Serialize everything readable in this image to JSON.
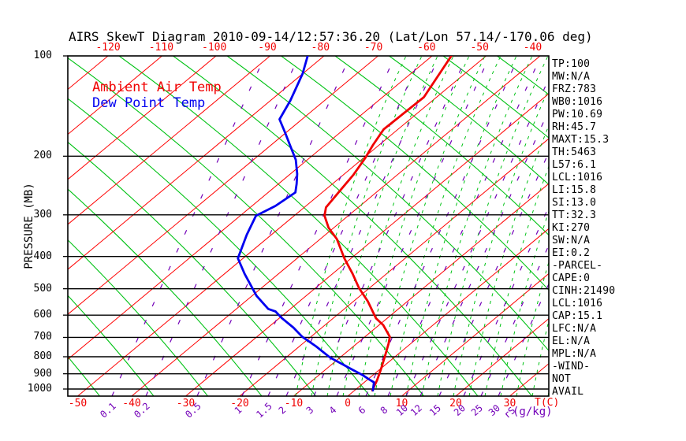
{
  "title": "AIRS SkewT Diagram 2010-09-14/12:57:36.20 (Lat/Lon 57.14/-170.06 deg)",
  "legend": {
    "ambient": "Ambient Air Temp",
    "dew": "Dew Point Temp"
  },
  "colors": {
    "ambient_temp": "#f00000",
    "dew_point": "#0000f0",
    "isotherm": "#ff0000",
    "adiabat_green": "#00c214",
    "mixing_purple": "#7300b8",
    "axis_black": "#000000"
  },
  "axes": {
    "left_label": "PRESSURE (MB)",
    "pressure_ticks": [
      "100",
      "200",
      "300",
      "400",
      "500",
      "600",
      "700",
      "800",
      "900",
      "1000"
    ],
    "top_temp_ticks": [
      "-120",
      "-110",
      "-100",
      "-90",
      "-80",
      "-70",
      "-60",
      "-50",
      "-40"
    ],
    "bottom_temp_ticks": [
      "-50",
      "-40",
      "-30",
      "-20",
      "-10",
      "0",
      "10",
      "20",
      "30"
    ],
    "bottom_unit": "T(C)",
    "mixing_ticks": [
      "0.1",
      "0.2",
      "0.5",
      "1",
      "1.5",
      "2",
      "3",
      "4",
      "6",
      "8",
      "10",
      "12",
      "15",
      "20",
      "25",
      "30"
    ],
    "mixing_unit": "(g/kg)",
    "mixing_unit_prefix": "rS"
  },
  "indices": [
    "TP:100",
    "MW:N/A",
    "FRZ:783",
    "WB0:1016",
    "PW:10.69",
    "RH:45.7",
    "MAXT:15.3",
    "TH:5463",
    "L57:6.1",
    "LCL:1016",
    "LI:15.8",
    "SI:13.0",
    "TT:32.3",
    "KI:270",
    "SW:N/A",
    "EI:0.2",
    "-PARCEL-",
    "CAPE:0",
    "CINH:21490",
    "LCL:1016",
    "CAP:15.1",
    "LFC:N/A",
    "EL:N/A",
    "MPL:N/A",
    "-WIND-",
    "NOT",
    "AVAIL"
  ],
  "chart_data": {
    "type": "line",
    "variant": "skew-t-log-p",
    "title": "AIRS SkewT Diagram 2010-09-14/12:57:36.20 (Lat/Lon 57.14/-170.06 deg)",
    "y_axis": {
      "label": "PRESSURE (MB)",
      "scale": "log",
      "range_mb": [
        100,
        1050
      ],
      "ticks_mb": [
        100,
        200,
        300,
        400,
        500,
        600,
        700,
        800,
        900,
        1000
      ]
    },
    "x_axis": {
      "label": "T(C)",
      "top_labels_c": [
        -120,
        -110,
        -100,
        -90,
        -80,
        -70,
        -60,
        -50,
        -40
      ],
      "bottom_labels_c": [
        -50,
        -40,
        -30,
        -20,
        -10,
        0,
        10,
        20,
        30
      ]
    },
    "mixing_ratio_lines_g_kg": [
      0.1,
      0.2,
      0.5,
      1,
      1.5,
      2,
      3,
      4,
      6,
      8,
      10,
      12,
      15,
      20,
      25,
      30
    ],
    "grid": {
      "isotherms_c": {
        "min": -160,
        "max": 40,
        "step": 10
      },
      "dry_adiabats": "green solid",
      "moist_adiabats": "green dashed",
      "mixing_ratio": "purple dashed",
      "pressure_lines": "black horizontal"
    },
    "series": [
      {
        "name": "Ambient Air Temp",
        "color": "#f00000",
        "points_p_mb_t_c": [
          [
            100,
            -56.5
          ],
          [
            133,
            -52.4
          ],
          [
            155,
            -52.6
          ],
          [
            166,
            -52.7
          ],
          [
            185,
            -51.2
          ],
          [
            203,
            -49.7
          ],
          [
            227,
            -48.2
          ],
          [
            252,
            -47.2
          ],
          [
            285,
            -46.0
          ],
          [
            302,
            -44.4
          ],
          [
            328,
            -41.0
          ],
          [
            355,
            -36.9
          ],
          [
            405,
            -31.3
          ],
          [
            451,
            -26.3
          ],
          [
            497,
            -22.0
          ],
          [
            545,
            -17.4
          ],
          [
            613,
            -12.1
          ],
          [
            643,
            -9.2
          ],
          [
            697,
            -5.4
          ],
          [
            731,
            -4.1
          ],
          [
            800,
            -1.9
          ],
          [
            877,
            0.3
          ],
          [
            941,
            1.9
          ],
          [
            1010,
            3.3
          ]
        ]
      },
      {
        "name": "Dew Point Temp",
        "color": "#0000f0",
        "points_p_mb_t_c": [
          [
            100,
            -83.1
          ],
          [
            113,
            -80.1
          ],
          [
            136,
            -76.4
          ],
          [
            155,
            -74.2
          ],
          [
            170,
            -70.2
          ],
          [
            192,
            -65.0
          ],
          [
            205,
            -62.2
          ],
          [
            226,
            -58.8
          ],
          [
            242,
            -56.7
          ],
          [
            257,
            -55.0
          ],
          [
            282,
            -55.7
          ],
          [
            302,
            -57.1
          ],
          [
            344,
            -54.6
          ],
          [
            405,
            -51.0
          ],
          [
            451,
            -46.3
          ],
          [
            525,
            -39.2
          ],
          [
            575,
            -34.1
          ],
          [
            585,
            -32.2
          ],
          [
            613,
            -29.5
          ],
          [
            654,
            -25.3
          ],
          [
            697,
            -21.6
          ],
          [
            745,
            -16.9
          ],
          [
            805,
            -11.8
          ],
          [
            840,
            -8.3
          ],
          [
            875,
            -5.0
          ],
          [
            907,
            -2.0
          ],
          [
            935,
            0.2
          ],
          [
            955,
            1.8
          ],
          [
            1010,
            3.4
          ]
        ]
      }
    ]
  }
}
